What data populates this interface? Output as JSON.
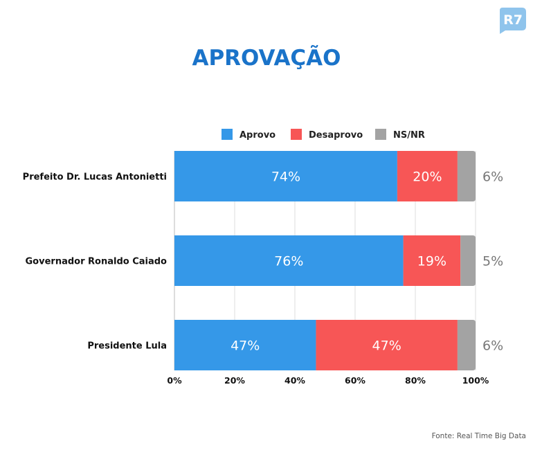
{
  "logo": {
    "text": "R7",
    "color": "#8fc4ec"
  },
  "source": "Fonte: Real Time Big Data",
  "chart_data": {
    "type": "bar",
    "orientation": "horizontal",
    "stacked": true,
    "title": "APROVAÇÃO",
    "categories": [
      "Prefeito Dr. Lucas Antonietti",
      "Governador Ronaldo Caiado",
      "Presidente Lula"
    ],
    "series": [
      {
        "name": "Aprovo",
        "color": "#3598e8",
        "values": [
          74,
          76,
          47
        ],
        "labels": [
          "74%",
          "76%",
          "47%"
        ]
      },
      {
        "name": "Desaprovo",
        "color": "#f75656",
        "values": [
          20,
          19,
          47
        ],
        "labels": [
          "20%",
          "19%",
          "47%"
        ]
      },
      {
        "name": "NS/NR",
        "color": "#a3a3a3",
        "values": [
          6,
          5,
          6
        ],
        "labels": [
          "6%",
          "5%",
          "6%"
        ]
      }
    ],
    "xlim": [
      0,
      100
    ],
    "xticks": [
      "0%",
      "20%",
      "40%",
      "60%",
      "80%",
      "100%"
    ],
    "grid": true,
    "legend_position": "top"
  }
}
